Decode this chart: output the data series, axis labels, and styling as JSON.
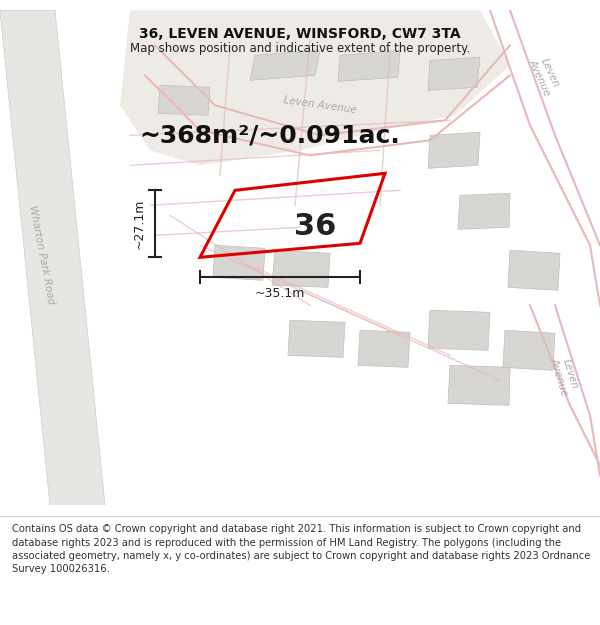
{
  "title": "36, LEVEN AVENUE, WINSFORD, CW7 3TA",
  "subtitle": "Map shows position and indicative extent of the property.",
  "footer": "Contains OS data © Crown copyright and database right 2021. This information is subject to Crown copyright and database rights 2023 and is reproduced with the permission of HM Land Registry. The polygons (including the associated geometry, namely x, y co-ordinates) are subject to Crown copyright and database rights 2023 Ordnance Survey 100026316.",
  "area_text": "~368m²/~0.091ac.",
  "width_text": "~35.1m",
  "height_text": "~27.1m",
  "plot_number": "36",
  "map_bg": "#f2f0ee",
  "road_fill": "#e8e4e0",
  "building_fill": "#d8d6d2",
  "building_edge": "#c0bcb8",
  "pink_road": "#e8b8b8",
  "pink_light": "#f0cccc",
  "red_plot": "#dd0000",
  "dim_color": "#222222",
  "text_gray": "#aaaaaa",
  "title_fontsize": 10,
  "subtitle_fontsize": 8.5,
  "footer_fontsize": 7.2,
  "area_fontsize": 18,
  "plot_num_fontsize": 22,
  "dim_fontsize": 9,
  "road_label_fontsize": 7.5
}
